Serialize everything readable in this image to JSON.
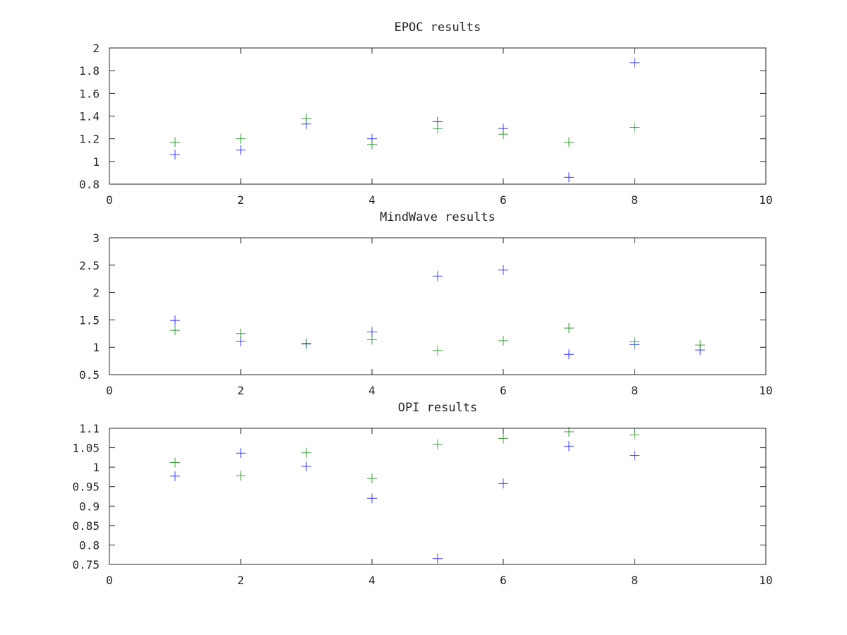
{
  "figure": {
    "background": "#ffffff",
    "axes_color": "#262626"
  },
  "chart_data": [
    {
      "type": "scatter",
      "title": "EPOC results",
      "xlim": [
        0,
        10
      ],
      "ylim": [
        0.8,
        2
      ],
      "xticks": [
        0,
        2,
        4,
        6,
        8,
        10
      ],
      "xtick_labels": [
        "0",
        "2",
        "4",
        "6",
        "8",
        "10"
      ],
      "yticks": [
        0.8,
        1,
        1.2,
        1.4,
        1.6,
        1.8,
        2
      ],
      "ytick_labels": [
        "0.8",
        "1",
        "1.2",
        "1.4",
        "1.6",
        "1.8",
        "2"
      ],
      "marker": "+",
      "grid": false,
      "series": [
        {
          "color": "#0000ff",
          "x": [
            1,
            2,
            3,
            4,
            5,
            6,
            7,
            8
          ],
          "y": [
            1.06,
            1.1,
            1.33,
            1.2,
            1.35,
            1.29,
            0.86,
            1.87
          ]
        },
        {
          "color": "#008000",
          "x": [
            1,
            2,
            3,
            4,
            5,
            6,
            7,
            8
          ],
          "y": [
            1.17,
            1.2,
            1.38,
            1.15,
            1.29,
            1.24,
            1.17,
            1.3
          ]
        }
      ]
    },
    {
      "type": "scatter",
      "title": "MindWave results",
      "xlim": [
        0,
        10
      ],
      "ylim": [
        0.5,
        3
      ],
      "xticks": [
        0,
        2,
        4,
        6,
        8,
        10
      ],
      "xtick_labels": [
        "0",
        "2",
        "4",
        "6",
        "8",
        "10"
      ],
      "yticks": [
        0.5,
        1,
        1.5,
        2,
        2.5,
        3
      ],
      "ytick_labels": [
        "0.5",
        "1",
        "1.5",
        "2",
        "2.5",
        "3"
      ],
      "marker": "+",
      "grid": false,
      "series": [
        {
          "color": "#0000ff",
          "x": [
            1,
            2,
            3,
            4,
            5,
            6,
            7,
            8,
            9
          ],
          "y": [
            1.49,
            1.11,
            1.06,
            1.28,
            2.3,
            2.41,
            0.87,
            1.05,
            0.95
          ]
        },
        {
          "color": "#008000",
          "x": [
            1,
            2,
            3,
            4,
            5,
            6,
            7,
            8,
            9
          ],
          "y": [
            1.31,
            1.25,
            1.07,
            1.14,
            0.94,
            1.12,
            1.35,
            1.1,
            1.04
          ]
        }
      ]
    },
    {
      "type": "scatter",
      "title": "OPI results",
      "xlim": [
        0,
        10
      ],
      "ylim": [
        0.75,
        1.1
      ],
      "xticks": [
        0,
        2,
        4,
        6,
        8,
        10
      ],
      "xtick_labels": [
        "0",
        "2",
        "4",
        "6",
        "8",
        "10"
      ],
      "yticks": [
        0.75,
        0.8,
        0.85,
        0.9,
        0.95,
        1,
        1.05,
        1.1
      ],
      "ytick_labels": [
        "0.75",
        "0.8",
        "0.85",
        "0.9",
        "0.95",
        "1",
        "1.05",
        "1.1"
      ],
      "marker": "+",
      "grid": false,
      "series": [
        {
          "color": "#0000ff",
          "x": [
            1,
            2,
            3,
            4,
            5,
            6,
            7,
            8
          ],
          "y": [
            0.977,
            1.036,
            1.002,
            0.92,
            0.765,
            0.958,
            1.054,
            1.03
          ]
        },
        {
          "color": "#008000",
          "x": [
            1,
            2,
            3,
            4,
            5,
            6,
            7,
            8
          ],
          "y": [
            1.012,
            0.978,
            1.037,
            0.971,
            1.059,
            1.074,
            1.091,
            1.083
          ]
        }
      ]
    }
  ]
}
